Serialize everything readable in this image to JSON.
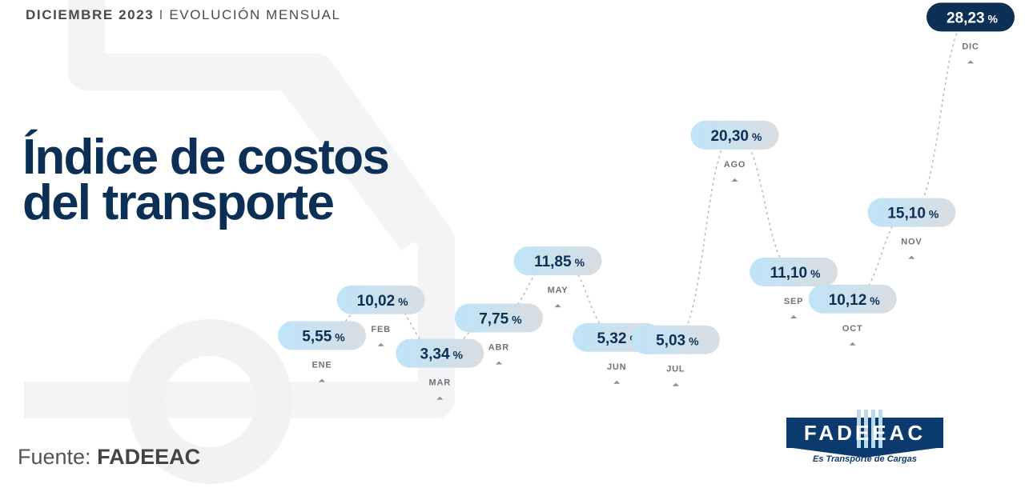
{
  "header": {
    "date": "DICIEMBRE 2023",
    "separator": "I",
    "subtitle": "EVOLUCIÓN MENSUAL"
  },
  "title": {
    "line1": "Índice de costos",
    "line2": "del transporte"
  },
  "source": {
    "label": "Fuente:",
    "name": "FADEEAC"
  },
  "logo": {
    "name": "FADEEAC",
    "tagline": "Es Transporte de Cargas"
  },
  "colors": {
    "navy": "#0b2f55",
    "pill": "#cfe8f7",
    "pill_highlight": "#0b2f55",
    "accent": "#1e4d7b"
  },
  "chart_data": {
    "type": "line",
    "categories": [
      "ENE",
      "FEB",
      "MAR",
      "ABR",
      "MAY",
      "JUN",
      "JUL",
      "AGO",
      "SEP",
      "OCT",
      "NOV",
      "DIC"
    ],
    "values": [
      5.55,
      10.02,
      3.34,
      7.75,
      11.85,
      5.32,
      5.03,
      20.3,
      11.1,
      10.12,
      15.1,
      28.23
    ],
    "labels": [
      "5,55",
      "10,02",
      "3,34",
      "7,75",
      "11,85",
      "5,32",
      "5,03",
      "20,30",
      "11,10",
      "10,12",
      "15,10",
      "28,23"
    ],
    "unit": "%",
    "highlight_index": 11,
    "grid": false
  }
}
